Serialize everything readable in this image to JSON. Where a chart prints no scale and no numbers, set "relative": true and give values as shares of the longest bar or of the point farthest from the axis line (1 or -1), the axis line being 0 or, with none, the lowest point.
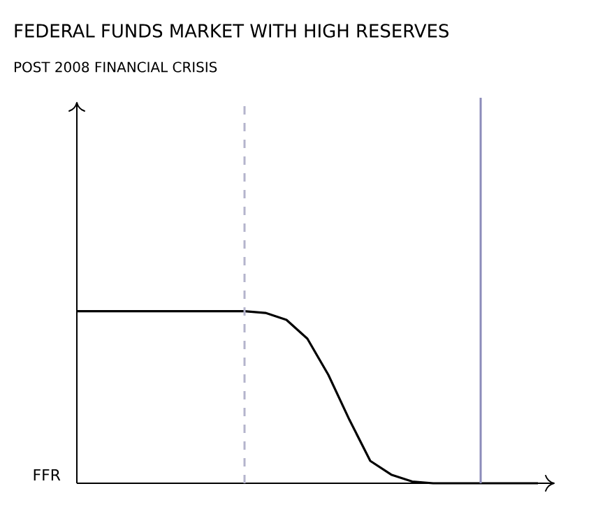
{
  "chart_data": {
    "type": "line",
    "title": "FEDERAL FUNDS MARKET WITH HIGH RESERVES",
    "subtitle": "POST 2008 FINANCIAL CRISIS",
    "ylabel": "FFR",
    "relative": true,
    "categories": [
      null,
      null,
      null,
      null,
      null,
      null,
      null,
      null,
      null,
      null,
      null,
      null,
      null,
      null,
      null,
      null,
      null,
      null,
      null,
      null,
      null,
      null,
      null
    ],
    "series": [
      {
        "color": "#000000",
        "values": [
          1,
          1,
          1,
          1,
          1,
          1,
          1,
          1,
          1,
          0.99,
          0.95,
          0.84,
          0.63,
          0.37,
          0.13,
          0.05,
          0.01,
          0,
          0,
          0,
          0,
          0,
          0
        ]
      }
    ]
  }
}
